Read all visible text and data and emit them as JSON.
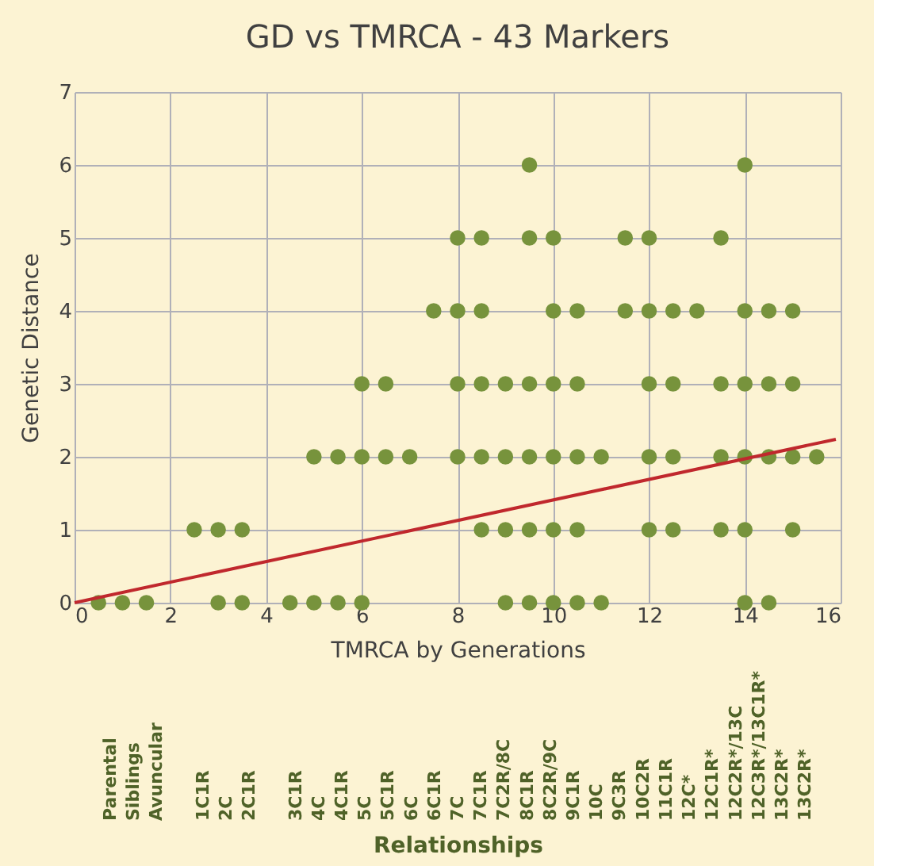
{
  "chart_data": [
    {
      "type": "scatter",
      "title": "GD vs TMRCA - 43 Markers",
      "xlabel": "TMRCA by Generations",
      "ylabel": "Genetic Distance",
      "xlim": [
        0,
        16
      ],
      "xticks": [
        0,
        2,
        4,
        6,
        8,
        10,
        12,
        14,
        16
      ],
      "ylim": [
        0,
        7
      ],
      "yticks": [
        0,
        1,
        2,
        3,
        4,
        5,
        6,
        7
      ],
      "grid": true,
      "series": [
        {
          "type": "scatter",
          "marker": "circle",
          "color": "#77933c",
          "x": [
            0.5,
            1,
            1.5,
            3,
            3.5,
            4.5,
            5,
            5.5,
            6,
            9,
            9.5,
            10,
            10.5,
            11,
            14,
            14.5,
            2.5,
            3,
            3.5,
            8.5,
            9,
            9.5,
            10,
            10.5,
            12,
            12.5,
            13.5,
            14,
            15,
            5,
            5.5,
            6,
            6.5,
            7,
            8,
            8.5,
            9,
            9.5,
            10,
            10.5,
            11,
            12,
            12.5,
            13.5,
            14,
            14.5,
            15,
            15.5,
            6,
            6.5,
            8,
            8.5,
            9,
            9.5,
            10,
            10.5,
            12,
            12.5,
            13.5,
            14,
            14.5,
            15,
            7.5,
            8,
            8.5,
            10,
            10.5,
            11.5,
            12,
            12.5,
            13,
            14,
            14.5,
            15,
            8,
            8.5,
            9.5,
            10,
            11.5,
            12,
            13.5,
            9.5,
            14
          ],
          "values": [
            0,
            0,
            0,
            0,
            0,
            0,
            0,
            0,
            0,
            0,
            0,
            0,
            0,
            0,
            0,
            0,
            1,
            1,
            1,
            1,
            1,
            1,
            1,
            1,
            1,
            1,
            1,
            1,
            1,
            2,
            2,
            2,
            2,
            2,
            2,
            2,
            2,
            2,
            2,
            2,
            2,
            2,
            2,
            2,
            2,
            2,
            2,
            2,
            3,
            3,
            3,
            3,
            3,
            3,
            3,
            3,
            3,
            3,
            3,
            3,
            3,
            3,
            4,
            4,
            4,
            4,
            4,
            4,
            4,
            4,
            4,
            4,
            4,
            4,
            5,
            5,
            5,
            5,
            5,
            5,
            5,
            6,
            6
          ]
        },
        {
          "type": "line",
          "marker": "none",
          "color": "#c0282d",
          "line_style": "solid",
          "x": [
            0,
            15.9
          ],
          "values": [
            0,
            2.24
          ]
        }
      ]
    },
    {
      "type": "other",
      "xlabel": "Relationships",
      "categories": [
        "Parental",
        "Siblings",
        "Avuncular",
        null,
        "1C1R",
        "2C",
        "2C1R",
        null,
        "3C1R",
        "4C",
        "4C1R",
        "5C",
        "5C1R",
        "6C",
        "6C1R",
        "7C",
        "7C1R",
        "7C2R/8C",
        "8C1R",
        "8C2R/9C",
        "9C1R",
        "10C",
        "9C3R",
        "10C2R",
        "11C1R",
        "12C*",
        "12C1R*",
        "12C2R*/13C",
        "12C3R*/13C1R*",
        "13C2R*",
        "13C2R*"
      ]
    }
  ]
}
